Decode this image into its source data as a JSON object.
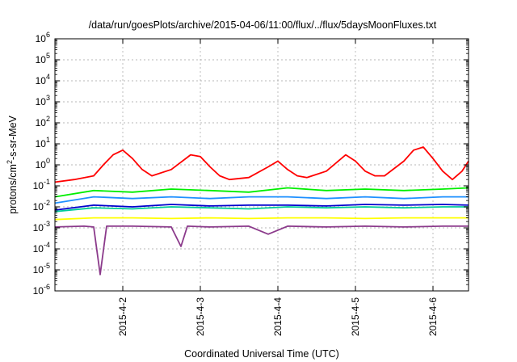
{
  "chart_data": {
    "type": "line",
    "title": "/data/run/goesPlots/archive/2015-04-06/11:00/flux/../flux/5daysMoonFluxes.txt",
    "xlabel": "Coordinated Universal Time (UTC)",
    "ylabel": "protons/cm2-s-sr-MeV",
    "ylabel_parts": {
      "base": "protons/cm",
      "sup": "2",
      "rest": "-s-sr-MeV"
    },
    "y_scale": "log",
    "ylim": [
      1e-06,
      1000000.0
    ],
    "y_ticks": [
      {
        "value": 1e-06,
        "base": "10",
        "exp": "-6"
      },
      {
        "value": 1e-05,
        "base": "10",
        "exp": "-5"
      },
      {
        "value": 0.0001,
        "base": "10",
        "exp": "-4"
      },
      {
        "value": 0.001,
        "base": "10",
        "exp": "-3"
      },
      {
        "value": 0.01,
        "base": "10",
        "exp": "-2"
      },
      {
        "value": 0.1,
        "base": "10",
        "exp": "-1"
      },
      {
        "value": 1.0,
        "base": "10",
        "exp": "0"
      },
      {
        "value": 10.0,
        "base": "10",
        "exp": "1"
      },
      {
        "value": 100.0,
        "base": "10",
        "exp": "2"
      },
      {
        "value": 1000.0,
        "base": "10",
        "exp": "3"
      },
      {
        "value": 10000.0,
        "base": "10",
        "exp": "4"
      },
      {
        "value": 100000.0,
        "base": "10",
        "exp": "5"
      },
      {
        "value": 1000000.0,
        "base": "10",
        "exp": "6"
      }
    ],
    "xlim": [
      "2015-04-01T03:00",
      "2015-04-06T11:00"
    ],
    "x_ticks": [
      {
        "value": "2015-04-02T00:00",
        "label": "2015-4-2"
      },
      {
        "value": "2015-04-03T00:00",
        "label": "2015-4-3"
      },
      {
        "value": "2015-04-04T00:00",
        "label": "2015-4-4"
      },
      {
        "value": "2015-04-05T00:00",
        "label": "2015-4-5"
      },
      {
        "value": "2015-04-06T00:00",
        "label": "2015-4-6"
      }
    ],
    "grid": true,
    "legend": "none",
    "series": [
      {
        "color": "#ff0000",
        "x": [
          "2015-04-01T03:00",
          "2015-04-01T09:00",
          "2015-04-01T15:00",
          "2015-04-01T18:00",
          "2015-04-01T21:00",
          "2015-04-02T00:00",
          "2015-04-02T03:00",
          "2015-04-02T06:00",
          "2015-04-02T09:00",
          "2015-04-02T15:00",
          "2015-04-02T21:00",
          "2015-04-03T00:00",
          "2015-04-03T03:00",
          "2015-04-03T06:00",
          "2015-04-03T09:00",
          "2015-04-03T15:00",
          "2015-04-03T21:00",
          "2015-04-04T00:00",
          "2015-04-04T03:00",
          "2015-04-04T06:00",
          "2015-04-04T09:00",
          "2015-04-04T15:00",
          "2015-04-04T21:00",
          "2015-04-05T00:00",
          "2015-04-05T03:00",
          "2015-04-05T06:00",
          "2015-04-05T09:00",
          "2015-04-05T15:00",
          "2015-04-05T18:00",
          "2015-04-05T21:00",
          "2015-04-06T00:00",
          "2015-04-06T03:00",
          "2015-04-06T06:00",
          "2015-04-06T09:00",
          "2015-04-06T11:00"
        ],
        "values": [
          0.15,
          0.2,
          0.3,
          1.0,
          3.0,
          5.0,
          2.0,
          0.6,
          0.3,
          0.6,
          3.0,
          2.5,
          0.8,
          0.3,
          0.2,
          0.25,
          0.8,
          1.5,
          0.6,
          0.3,
          0.25,
          0.5,
          3.0,
          1.5,
          0.5,
          0.3,
          0.3,
          1.5,
          5.0,
          7.0,
          2.0,
          0.5,
          0.2,
          0.5,
          1.5
        ]
      },
      {
        "color": "#00ee00",
        "x": [
          "2015-04-01T03:00",
          "2015-04-01T15:00",
          "2015-04-02T03:00",
          "2015-04-02T15:00",
          "2015-04-03T03:00",
          "2015-04-03T15:00",
          "2015-04-04T03:00",
          "2015-04-04T15:00",
          "2015-04-05T03:00",
          "2015-04-05T15:00",
          "2015-04-06T03:00",
          "2015-04-06T11:00"
        ],
        "values": [
          0.03,
          0.06,
          0.05,
          0.07,
          0.06,
          0.05,
          0.08,
          0.06,
          0.07,
          0.06,
          0.07,
          0.08
        ]
      },
      {
        "color": "#1e90ff",
        "x": [
          "2015-04-01T03:00",
          "2015-04-01T15:00",
          "2015-04-02T03:00",
          "2015-04-02T15:00",
          "2015-04-03T03:00",
          "2015-04-03T15:00",
          "2015-04-04T03:00",
          "2015-04-04T15:00",
          "2015-04-05T03:00",
          "2015-04-05T15:00",
          "2015-04-06T03:00",
          "2015-04-06T11:00"
        ],
        "values": [
          0.015,
          0.03,
          0.025,
          0.03,
          0.025,
          0.03,
          0.03,
          0.025,
          0.03,
          0.025,
          0.03,
          0.03
        ]
      },
      {
        "color": "#00cc99",
        "x": [
          "2015-04-01T03:00",
          "2015-04-01T15:00",
          "2015-04-02T03:00",
          "2015-04-02T15:00",
          "2015-04-03T03:00",
          "2015-04-03T15:00",
          "2015-04-04T03:00",
          "2015-04-04T15:00",
          "2015-04-05T03:00",
          "2015-04-05T15:00",
          "2015-04-06T03:00",
          "2015-04-06T11:00"
        ],
        "values": [
          0.006,
          0.009,
          0.008,
          0.01,
          0.009,
          0.008,
          0.01,
          0.009,
          0.01,
          0.009,
          0.01,
          0.01
        ]
      },
      {
        "color": "#0000cd",
        "x": [
          "2015-04-01T03:00",
          "2015-04-01T15:00",
          "2015-04-02T03:00",
          "2015-04-02T15:00",
          "2015-04-03T03:00",
          "2015-04-03T15:00",
          "2015-04-04T03:00",
          "2015-04-04T15:00",
          "2015-04-05T03:00",
          "2015-04-05T15:00",
          "2015-04-06T03:00",
          "2015-04-06T11:00"
        ],
        "values": [
          0.007,
          0.012,
          0.01,
          0.013,
          0.011,
          0.012,
          0.012,
          0.011,
          0.013,
          0.012,
          0.013,
          0.012
        ]
      },
      {
        "color": "#ffff00",
        "x": [
          "2015-04-01T03:00",
          "2015-04-01T15:00",
          "2015-04-02T03:00",
          "2015-04-02T15:00",
          "2015-04-03T03:00",
          "2015-04-03T15:00",
          "2015-04-04T03:00",
          "2015-04-04T15:00",
          "2015-04-05T03:00",
          "2015-04-05T15:00",
          "2015-04-06T03:00",
          "2015-04-06T11:00"
        ],
        "values": [
          0.0025,
          0.003,
          0.003,
          0.0028,
          0.003,
          0.0028,
          0.003,
          0.003,
          0.0028,
          0.003,
          0.003,
          0.003
        ]
      },
      {
        "color": "#8b3a8b",
        "x": [
          "2015-04-01T03:00",
          "2015-04-01T12:00",
          "2015-04-01T15:00",
          "2015-04-01T17:00",
          "2015-04-01T19:00",
          "2015-04-02T03:00",
          "2015-04-02T15:00",
          "2015-04-02T18:00",
          "2015-04-02T20:00",
          "2015-04-03T03:00",
          "2015-04-03T15:00",
          "2015-04-03T21:00",
          "2015-04-04T03:00",
          "2015-04-04T15:00",
          "2015-04-05T03:00",
          "2015-04-05T15:00",
          "2015-04-06T03:00",
          "2015-04-06T11:00"
        ],
        "values": [
          0.0011,
          0.0012,
          0.0011,
          6e-06,
          0.0012,
          0.0012,
          0.0011,
          0.00013,
          0.0012,
          0.0011,
          0.0012,
          0.0005,
          0.0012,
          0.0011,
          0.0012,
          0.0011,
          0.0012,
          0.0012
        ]
      }
    ]
  }
}
